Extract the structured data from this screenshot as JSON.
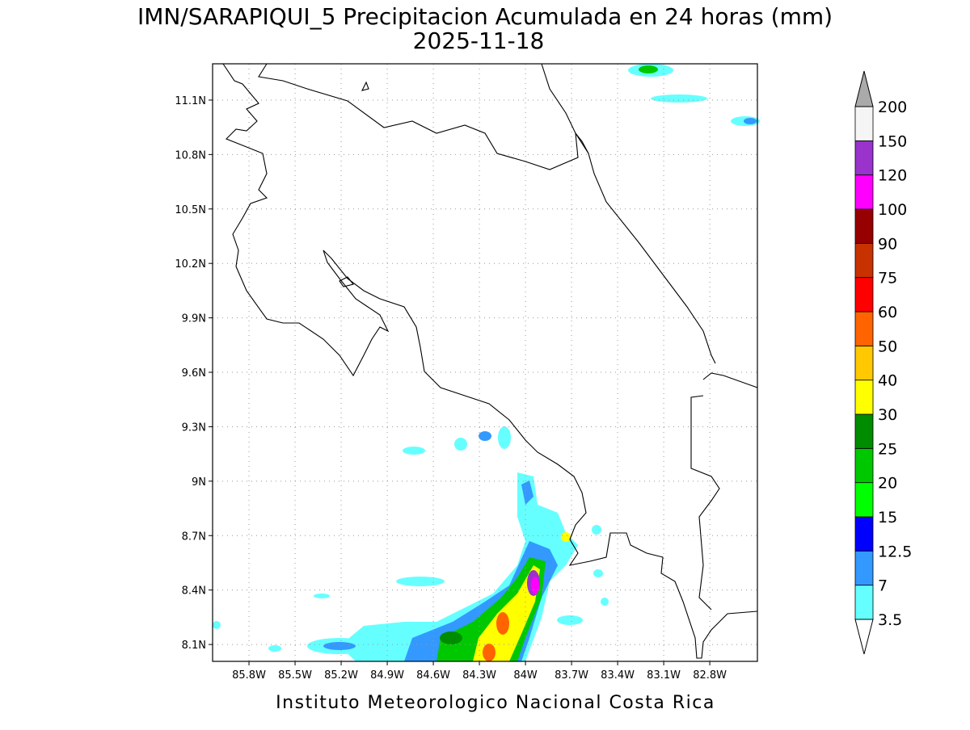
{
  "title": "IMN/SARAPIQUI_5 Precipitacion Acumulada en 24 horas (mm)",
  "subtitle": "2025-11-18",
  "footer": "Instituto Meteorologico Nacional Costa Rica",
  "map": {
    "xlim": [
      -86.037,
      -82.49
    ],
    "ylim": [
      8.007,
      11.3
    ],
    "grid": true,
    "xticks": [
      {
        "value": -85.8,
        "label": "85.8W"
      },
      {
        "value": -85.5,
        "label": "85.5W"
      },
      {
        "value": -85.2,
        "label": "85.2W"
      },
      {
        "value": -84.9,
        "label": "84.9W"
      },
      {
        "value": -84.6,
        "label": "84.6W"
      },
      {
        "value": -84.3,
        "label": "84.3W"
      },
      {
        "value": -84,
        "label": "84W"
      },
      {
        "value": -83.7,
        "label": "83.7W"
      },
      {
        "value": -83.4,
        "label": "83.4W"
      },
      {
        "value": -83.1,
        "label": "83.1W"
      },
      {
        "value": -82.8,
        "label": "82.8W"
      }
    ],
    "yticks": [
      {
        "value": 8.1,
        "label": "8.1N"
      },
      {
        "value": 8.4,
        "label": "8.4N"
      },
      {
        "value": 8.7,
        "label": "8.7N"
      },
      {
        "value": 9,
        "label": "9N"
      },
      {
        "value": 9.3,
        "label": "9.3N"
      },
      {
        "value": 9.6,
        "label": "9.6N"
      },
      {
        "value": 9.9,
        "label": "9.9N"
      },
      {
        "value": 10.2,
        "label": "10.2N"
      },
      {
        "value": 10.5,
        "label": "10.5N"
      },
      {
        "value": 10.8,
        "label": "10.8N"
      },
      {
        "value": 11.1,
        "label": "11.1N"
      }
    ]
  },
  "colorbar": {
    "levels": [
      3.5,
      7,
      12.5,
      15,
      20,
      25,
      30,
      40,
      50,
      60,
      75,
      90,
      100,
      120,
      150,
      200
    ],
    "colors": [
      "#66ffff",
      "#3399ff",
      "#0000ff",
      "#00ff00",
      "#00c800",
      "#008c00",
      "#ffff00",
      "#ffc800",
      "#ff6400",
      "#ff0000",
      "#c83200",
      "#960000",
      "#ff00ff",
      "#9933cc",
      "#f5f5f5"
    ],
    "below_color": "#ffffff",
    "above_color": "#aaaaaa"
  }
}
